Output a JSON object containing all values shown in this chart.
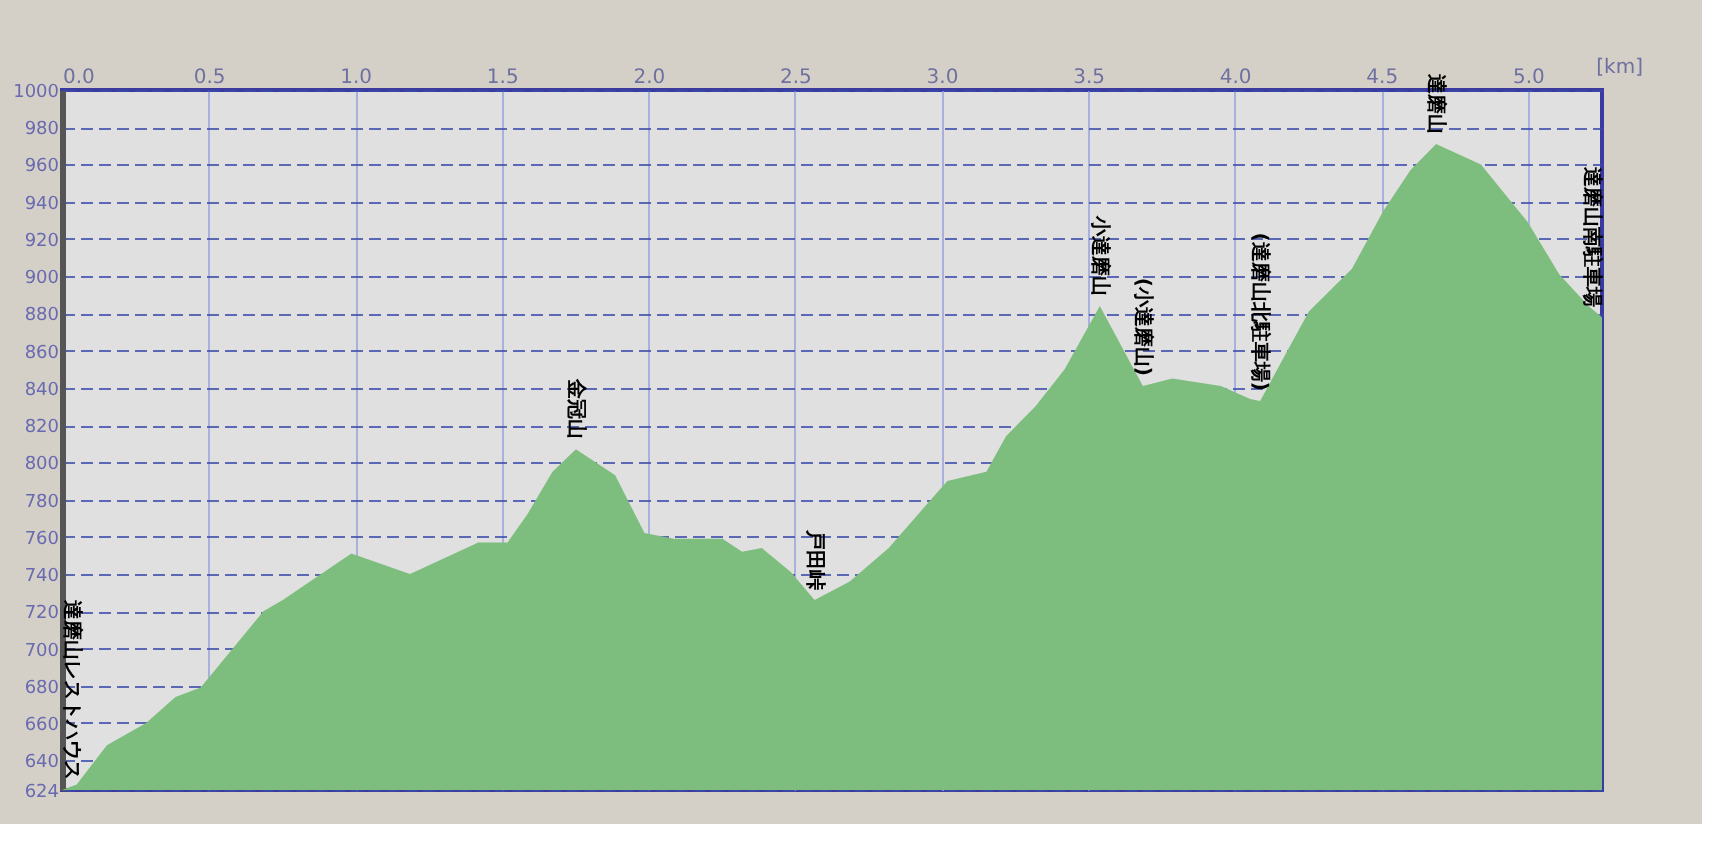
{
  "chart_data": {
    "type": "area",
    "xlabel": "[km]",
    "x": [
      0,
      0.05,
      0.153,
      0.287,
      0.387,
      0.473,
      0.687,
      0.753,
      0.987,
      1.187,
      1.42,
      1.52,
      1.587,
      1.673,
      1.753,
      1.887,
      1.987,
      2.087,
      2.253,
      2.32,
      2.387,
      2.487,
      2.567,
      2.687,
      2.82,
      2.953,
      3.02,
      3.153,
      3.22,
      3.32,
      3.42,
      3.54,
      3.687,
      3.787,
      3.953,
      4.053,
      4.087,
      4.253,
      4.4,
      4.507,
      4.6,
      4.687,
      4.84,
      5.0,
      5.107,
      5.207,
      5.253
    ],
    "series": [
      {
        "color": "#7dbd7d",
        "values": [
          624,
          627,
          648,
          660,
          674,
          679,
          720,
          726,
          751,
          740,
          757,
          757,
          772,
          795,
          807,
          793,
          762,
          759,
          759,
          752,
          754,
          741,
          726,
          736,
          754,
          778,
          790,
          795,
          814,
          830,
          850,
          884,
          841,
          845,
          841,
          834,
          833,
          881,
          904,
          935,
          957,
          971,
          960,
          929,
          901,
          884,
          878
        ]
      }
    ],
    "xlim": [
      0,
      5.253
    ],
    "xticks": [
      {
        "value": 0,
        "label": "0.0"
      },
      {
        "value": 0.5,
        "label": "0.5"
      },
      {
        "value": 1,
        "label": "1.0"
      },
      {
        "value": 1.5,
        "label": "1.5"
      },
      {
        "value": 2,
        "label": "2.0"
      },
      {
        "value": 2.5,
        "label": "2.5"
      },
      {
        "value": 3,
        "label": "3.0"
      },
      {
        "value": 3.5,
        "label": "3.5"
      },
      {
        "value": 4,
        "label": "4.0"
      },
      {
        "value": 4.5,
        "label": "4.5"
      },
      {
        "value": 5,
        "label": "5.0"
      }
    ],
    "ylim": [
      624,
      1000
    ],
    "yticks": [
      624,
      640,
      660,
      680,
      700,
      720,
      740,
      760,
      780,
      800,
      820,
      840,
      860,
      880,
      900,
      920,
      940,
      960,
      980,
      1000
    ],
    "grid": true,
    "annotations": [
      {
        "text": "達磨山レストハウス",
        "x": 0,
        "y": 624
      },
      {
        "text": "金冠山",
        "x": 1.753,
        "y": 807
      },
      {
        "text": "戸田峠",
        "x": 2.567,
        "y": 726
      },
      {
        "text": "小達磨山",
        "x": 3.54,
        "y": 884
      },
      {
        "text": "(小達磨山)",
        "x": 3.687,
        "y": 841
      },
      {
        "text": "(達磨山北駐車場)",
        "x": 4.087,
        "y": 833
      },
      {
        "text": "達磨山",
        "x": 4.687,
        "y": 971
      },
      {
        "text": "達磨山南駐車場",
        "x": 5.253,
        "y": 878
      }
    ]
  }
}
